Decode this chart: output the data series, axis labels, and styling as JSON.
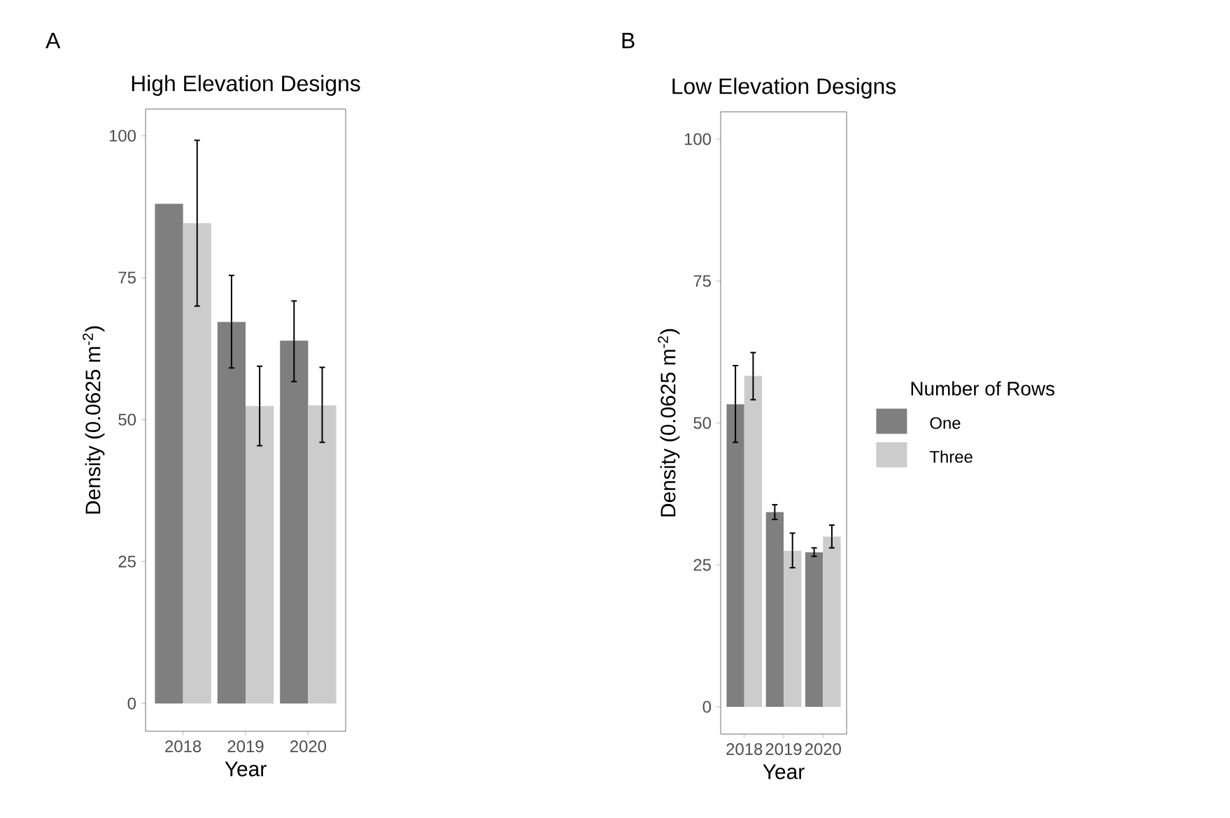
{
  "chart_data": [
    {
      "type": "bar",
      "title": "High Elevation Designs",
      "xlabel": "Year",
      "ylabel": "Density (0.0625 m$^{-2}$)",
      "annotations": [
        "A"
      ],
      "categories": [
        "2018",
        "2019",
        "2020"
      ],
      "ylim": [
        -4.9,
        104.7
      ],
      "yticks": [
        0,
        25,
        50,
        75,
        100
      ],
      "grid": false,
      "legend": false,
      "series": [
        {
          "color": "#7f7f7f",
          "values": [
            88.0,
            67.2,
            63.9
          ],
          "errors": [
            null,
            [
              59.1,
              75.4
            ],
            [
              56.7,
              70.9
            ]
          ]
        },
        {
          "color": "#cccccc",
          "values": [
            84.6,
            52.4,
            52.5
          ],
          "errors": [
            [
              70.0,
              99.2
            ],
            [
              45.4,
              59.4
            ],
            [
              46.0,
              59.2
            ]
          ]
        }
      ]
    },
    {
      "type": "bar",
      "title": "Low Elevation Designs",
      "xlabel": "Year",
      "ylabel": "Density (0.0625 m$^{-2}$)",
      "annotations": [
        "B"
      ],
      "categories": [
        "2018",
        "2019",
        "2020"
      ],
      "ylim": [
        -4.8,
        104.8
      ],
      "yticks": [
        0,
        25,
        50,
        75,
        100
      ],
      "grid": false,
      "legend": "right",
      "legend_title": "Number of Rows",
      "series": [
        {
          "name": "One",
          "color": "#7f7f7f",
          "values": [
            53.3,
            34.3,
            27.2
          ],
          "errors": [
            [
              46.6,
              60.1
            ],
            [
              33.0,
              35.6
            ],
            [
              26.5,
              28.0
            ]
          ]
        },
        {
          "name": "Three",
          "color": "#cccccc",
          "values": [
            58.3,
            27.5,
            30.0
          ],
          "errors": [
            [
              54.1,
              62.4
            ],
            [
              24.5,
              30.6
            ],
            [
              28.0,
              32.0
            ]
          ]
        }
      ]
    }
  ]
}
